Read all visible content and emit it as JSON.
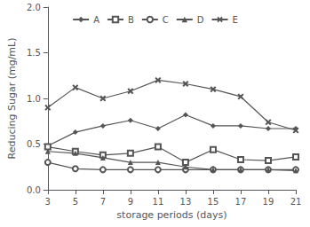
{
  "chart_data": {
    "type": "line",
    "x": [
      3,
      5,
      7,
      9,
      11,
      13,
      15,
      17,
      19,
      21
    ],
    "series": [
      {
        "name": "A",
        "color": "#555555",
        "marker": "diamond",
        "values": [
          0.48,
          0.63,
          0.7,
          0.76,
          0.67,
          0.82,
          0.7,
          0.7,
          0.67,
          0.67
        ]
      },
      {
        "name": "B",
        "color": "#555555",
        "marker": "open-square",
        "values": [
          0.47,
          0.42,
          0.38,
          0.4,
          0.47,
          0.3,
          0.44,
          0.33,
          0.32,
          0.36
        ]
      },
      {
        "name": "C",
        "color": "#555555",
        "marker": "open-circle",
        "values": [
          0.3,
          0.23,
          0.22,
          0.22,
          0.22,
          0.22,
          0.22,
          0.22,
          0.22,
          0.22
        ]
      },
      {
        "name": "D",
        "color": "#555555",
        "marker": "triangle",
        "values": [
          0.42,
          0.4,
          0.35,
          0.3,
          0.3,
          0.25,
          0.22,
          0.22,
          0.22,
          0.21
        ]
      },
      {
        "name": "E",
        "color": "#555555",
        "marker": "x",
        "values": [
          0.9,
          1.12,
          1.0,
          1.08,
          1.2,
          1.16,
          1.1,
          1.02,
          0.74,
          0.65
        ]
      }
    ],
    "xlabel": "storage periods (days)",
    "ylabel": "Reducing Sugar (mg/mL)",
    "xlim": [
      3,
      21
    ],
    "xticks": [
      3,
      5,
      7,
      9,
      11,
      13,
      15,
      17,
      19,
      21
    ],
    "ylim": [
      0.0,
      2.0
    ],
    "yticks": [
      {
        "value": 0.0,
        "label": "0.0"
      },
      0.5,
      {
        "value": 1.0,
        "label": "1.0"
      },
      1.5,
      {
        "value": 2.0,
        "label": "2.0"
      }
    ],
    "grid": false,
    "legend": "upper center"
  }
}
